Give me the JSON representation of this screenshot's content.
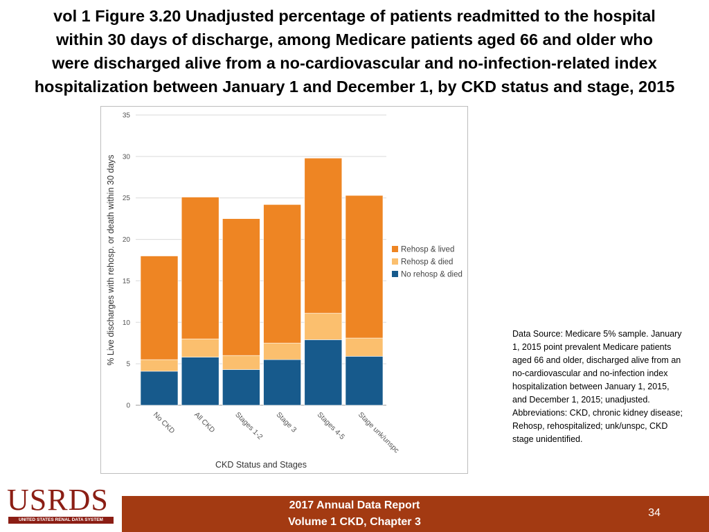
{
  "title": {
    "lines": [
      "vol 1 Figure 3.20 Unadjusted percentage of patients readmitted to the hospital",
      "within 30 days of discharge, among Medicare patients aged 66 and older who",
      "were discharged alive from a no-cardiovascular and no-infection-related index",
      "hospitalization between January 1 and December 1, by CKD status and stage, 2015"
    ]
  },
  "chart_data": {
    "type": "bar",
    "stacked": true,
    "categories": [
      "No CKD",
      "All CKD",
      "Stages 1-2",
      "Stage 3",
      "Stages 4-5",
      "Stage unk/unspc"
    ],
    "series": [
      {
        "name": "No rehosp & died",
        "color": "#175a8c",
        "values": [
          4.1,
          5.8,
          4.3,
          5.5,
          7.9,
          5.9
        ]
      },
      {
        "name": "Rehosp & died",
        "color": "#fbbf6e",
        "values": [
          1.4,
          2.2,
          1.7,
          2.0,
          3.2,
          2.2
        ]
      },
      {
        "name": "Rehosp & lived",
        "color": "#ee8523",
        "values": [
          12.5,
          17.1,
          16.5,
          16.7,
          18.7,
          17.2
        ]
      }
    ],
    "legend_order": [
      "Rehosp & lived",
      "Rehosp & died",
      "No rehosp & died"
    ],
    "xlabel": "CKD Status and Stages",
    "ylabel": "% Live discharges with rehosp. or death within 30 days",
    "ylim": [
      0,
      35
    ],
    "yticks": [
      0,
      5,
      10,
      15,
      20,
      25,
      30,
      35
    ],
    "grid": true,
    "legend_position": "right"
  },
  "source_note": "Data Source: Medicare 5% sample. January 1, 2015 point prevalent Medicare patients aged 66 and older, discharged alive from an no-cardiovascular and no-infection index hospitalization between January 1, 2015, and December 1, 2015; unadjusted. Abbreviations: CKD, chronic kidney disease; Rehosp, rehospitalized; unk/unspc, CKD stage unidentified.",
  "footer": {
    "logo_text": "USRDS",
    "logo_subtext": "UNITED STATES RENAL DATA SYSTEM",
    "report_line1": "2017 Annual Data Report",
    "report_line2": "Volume 1 CKD, Chapter 3",
    "page_number": "34"
  },
  "colors": {
    "footer_bar": "#a33a12",
    "logo": "#8b1e14"
  }
}
